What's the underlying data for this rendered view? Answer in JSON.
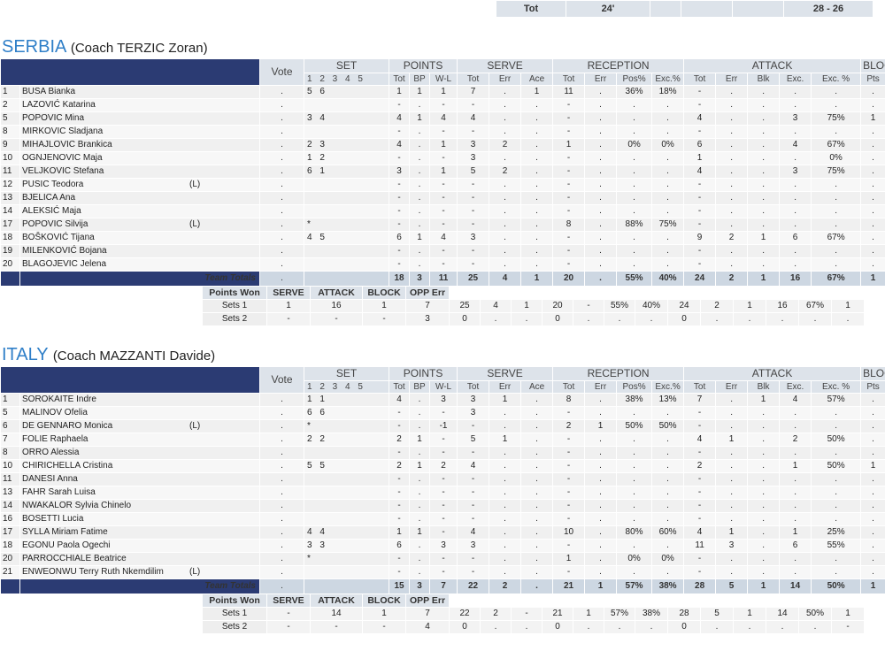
{
  "top_total": {
    "label": "Tot",
    "duration": "24'",
    "score": "28 - 26"
  },
  "headers": {
    "vote": "Vote",
    "groups": {
      "set": "SET",
      "points": "POINTS",
      "serve": "SERVE",
      "reception": "RECEPTION",
      "attack": "ATTACK",
      "block": "BLOCK"
    },
    "set_nums": "1 2 3 4 5",
    "points_cols": [
      "Tot",
      "BP",
      "W-L"
    ],
    "serve_cols": [
      "Tot",
      "Err",
      "Ace"
    ],
    "reception_cols": [
      "Tot",
      "Err",
      "Pos%",
      "Exc.%"
    ],
    "attack_cols": [
      "Tot",
      "Err",
      "Blk",
      "Exc.",
      "Exc. %"
    ],
    "block_cols": [
      "Pts"
    ],
    "team_totals": "Team Totals"
  },
  "points_won_headers": [
    "Points Won",
    "SERVE",
    "ATTACK",
    "BLOCK",
    "OPP Err"
  ],
  "teams": [
    {
      "name": "SERBIA",
      "coach": "(Coach TERZIC Zoran)",
      "players": [
        {
          "num": "1",
          "name": "BUSA Bianka",
          "lib": "",
          "vote": ".",
          "sets": "5 6",
          "p_tot": "1",
          "p_bp": "1",
          "p_wl": "1",
          "s_tot": "7",
          "s_err": ".",
          "s_ace": "1",
          "r_tot": "11",
          "r_err": ".",
          "r_pos": "36%",
          "r_exc": "18%",
          "a_tot": "-",
          "a_err": ".",
          "a_blk": ".",
          "a_exc": ".",
          "a_excp": ".",
          "b_pts": "."
        },
        {
          "num": "2",
          "name": "LAZOVIĆ Katarina",
          "lib": "",
          "vote": ".",
          "sets": "",
          "p_tot": "-",
          "p_bp": ".",
          "p_wl": "-",
          "s_tot": "-",
          "s_err": ".",
          "s_ace": ".",
          "r_tot": "-",
          "r_err": ".",
          "r_pos": ".",
          "r_exc": ".",
          "a_tot": "-",
          "a_err": ".",
          "a_blk": ".",
          "a_exc": ".",
          "a_excp": ".",
          "b_pts": "."
        },
        {
          "num": "5",
          "name": "POPOVIC Mina",
          "lib": "",
          "vote": ".",
          "sets": "3 4",
          "p_tot": "4",
          "p_bp": "1",
          "p_wl": "4",
          "s_tot": "4",
          "s_err": ".",
          "s_ace": ".",
          "r_tot": "-",
          "r_err": ".",
          "r_pos": ".",
          "r_exc": ".",
          "a_tot": "4",
          "a_err": ".",
          "a_blk": ".",
          "a_exc": "3",
          "a_excp": "75%",
          "b_pts": "1"
        },
        {
          "num": "8",
          "name": "MIRKOVIC Sladjana",
          "lib": "",
          "vote": ".",
          "sets": "",
          "p_tot": "-",
          "p_bp": ".",
          "p_wl": "-",
          "s_tot": "-",
          "s_err": ".",
          "s_ace": ".",
          "r_tot": "-",
          "r_err": ".",
          "r_pos": ".",
          "r_exc": ".",
          "a_tot": "-",
          "a_err": ".",
          "a_blk": ".",
          "a_exc": ".",
          "a_excp": ".",
          "b_pts": "."
        },
        {
          "num": "9",
          "name": "MIHAJLOVIC Brankica",
          "lib": "",
          "vote": ".",
          "sets": "2 3",
          "p_tot": "4",
          "p_bp": ".",
          "p_wl": "1",
          "s_tot": "3",
          "s_err": "2",
          "s_ace": ".",
          "r_tot": "1",
          "r_err": ".",
          "r_pos": "0%",
          "r_exc": "0%",
          "a_tot": "6",
          "a_err": ".",
          "a_blk": ".",
          "a_exc": "4",
          "a_excp": "67%",
          "b_pts": "."
        },
        {
          "num": "10",
          "name": "OGNJENOVIC Maja",
          "lib": "",
          "vote": ".",
          "sets": "1 2",
          "p_tot": "-",
          "p_bp": ".",
          "p_wl": "-",
          "s_tot": "3",
          "s_err": ".",
          "s_ace": ".",
          "r_tot": "-",
          "r_err": ".",
          "r_pos": ".",
          "r_exc": ".",
          "a_tot": "1",
          "a_err": ".",
          "a_blk": ".",
          "a_exc": ".",
          "a_excp": "0%",
          "b_pts": "."
        },
        {
          "num": "11",
          "name": "VELJKOVIC Stefana",
          "lib": "",
          "vote": ".",
          "sets": "6 1",
          "p_tot": "3",
          "p_bp": ".",
          "p_wl": "1",
          "s_tot": "5",
          "s_err": "2",
          "s_ace": ".",
          "r_tot": "-",
          "r_err": ".",
          "r_pos": ".",
          "r_exc": ".",
          "a_tot": "4",
          "a_err": ".",
          "a_blk": ".",
          "a_exc": "3",
          "a_excp": "75%",
          "b_pts": "."
        },
        {
          "num": "12",
          "name": "PUSIC Teodora",
          "lib": "(L)",
          "vote": ".",
          "sets": "",
          "p_tot": "-",
          "p_bp": ".",
          "p_wl": "-",
          "s_tot": "-",
          "s_err": ".",
          "s_ace": ".",
          "r_tot": "-",
          "r_err": ".",
          "r_pos": ".",
          "r_exc": ".",
          "a_tot": "-",
          "a_err": ".",
          "a_blk": ".",
          "a_exc": ".",
          "a_excp": ".",
          "b_pts": "."
        },
        {
          "num": "13",
          "name": "BJELICA Ana",
          "lib": "",
          "vote": ".",
          "sets": "",
          "p_tot": "-",
          "p_bp": ".",
          "p_wl": "-",
          "s_tot": "-",
          "s_err": ".",
          "s_ace": ".",
          "r_tot": "-",
          "r_err": ".",
          "r_pos": ".",
          "r_exc": ".",
          "a_tot": "-",
          "a_err": ".",
          "a_blk": ".",
          "a_exc": ".",
          "a_excp": ".",
          "b_pts": "."
        },
        {
          "num": "14",
          "name": "ALEKSIĆ Maja",
          "lib": "",
          "vote": ".",
          "sets": "",
          "p_tot": "-",
          "p_bp": ".",
          "p_wl": "-",
          "s_tot": "-",
          "s_err": ".",
          "s_ace": ".",
          "r_tot": "-",
          "r_err": ".",
          "r_pos": ".",
          "r_exc": ".",
          "a_tot": "-",
          "a_err": ".",
          "a_blk": ".",
          "a_exc": ".",
          "a_excp": ".",
          "b_pts": "."
        },
        {
          "num": "17",
          "name": "POPOVIC Silvija",
          "lib": "(L)",
          "vote": ".",
          "sets": "*",
          "p_tot": "-",
          "p_bp": ".",
          "p_wl": "-",
          "s_tot": "-",
          "s_err": ".",
          "s_ace": ".",
          "r_tot": "8",
          "r_err": ".",
          "r_pos": "88%",
          "r_exc": "75%",
          "a_tot": "-",
          "a_err": ".",
          "a_blk": ".",
          "a_exc": ".",
          "a_excp": ".",
          "b_pts": "."
        },
        {
          "num": "18",
          "name": "BOŠKOVIĆ Tijana",
          "lib": "",
          "vote": ".",
          "sets": "4 5",
          "p_tot": "6",
          "p_bp": "1",
          "p_wl": "4",
          "s_tot": "3",
          "s_err": ".",
          "s_ace": ".",
          "r_tot": "-",
          "r_err": ".",
          "r_pos": ".",
          "r_exc": ".",
          "a_tot": "9",
          "a_err": "2",
          "a_blk": "1",
          "a_exc": "6",
          "a_excp": "67%",
          "b_pts": "."
        },
        {
          "num": "19",
          "name": "MILENKOVIĆ Bojana",
          "lib": "",
          "vote": ".",
          "sets": "",
          "p_tot": "-",
          "p_bp": ".",
          "p_wl": "-",
          "s_tot": "-",
          "s_err": ".",
          "s_ace": ".",
          "r_tot": "-",
          "r_err": ".",
          "r_pos": ".",
          "r_exc": ".",
          "a_tot": "-",
          "a_err": ".",
          "a_blk": ".",
          "a_exc": ".",
          "a_excp": ".",
          "b_pts": "."
        },
        {
          "num": "20",
          "name": "BLAGOJEVIC Jelena",
          "lib": "",
          "vote": ".",
          "sets": "",
          "p_tot": "-",
          "p_bp": ".",
          "p_wl": "-",
          "s_tot": "-",
          "s_err": ".",
          "s_ace": ".",
          "r_tot": "-",
          "r_err": ".",
          "r_pos": ".",
          "r_exc": ".",
          "a_tot": "-",
          "a_err": ".",
          "a_blk": ".",
          "a_exc": ".",
          "a_excp": ".",
          "b_pts": "."
        }
      ],
      "totals": {
        "vote": ".",
        "p_tot": "18",
        "p_bp": "3",
        "p_wl": "11",
        "s_tot": "25",
        "s_err": "4",
        "s_ace": "1",
        "r_tot": "20",
        "r_err": ".",
        "r_pos": "55%",
        "r_exc": "40%",
        "a_tot": "24",
        "a_err": "2",
        "a_blk": "1",
        "a_exc": "16",
        "a_excp": "67%",
        "b_pts": "1"
      },
      "points_won": [
        {
          "label": "Sets 1",
          "serve": "1",
          "attack": "16",
          "block": "1",
          "opp": "7",
          "c": [
            "25",
            "4",
            "1",
            "20",
            "-",
            "55%",
            "40%",
            "24",
            "2",
            "1",
            "16",
            "67%",
            "1"
          ]
        },
        {
          "label": "Sets 2",
          "serve": "-",
          "attack": "-",
          "block": "-",
          "opp": "3",
          "c": [
            "0",
            ".",
            ".",
            "0",
            ".",
            ".",
            ".",
            "0",
            ".",
            ".",
            ".",
            ".",
            "."
          ]
        }
      ]
    },
    {
      "name": "ITALY",
      "coach": "(Coach MAZZANTI Davide)",
      "players": [
        {
          "num": "1",
          "name": "SOROKAITE Indre",
          "lib": "",
          "vote": ".",
          "sets": "1 1",
          "p_tot": "4",
          "p_bp": ".",
          "p_wl": "3",
          "s_tot": "3",
          "s_err": "1",
          "s_ace": ".",
          "r_tot": "8",
          "r_err": ".",
          "r_pos": "38%",
          "r_exc": "13%",
          "a_tot": "7",
          "a_err": ".",
          "a_blk": "1",
          "a_exc": "4",
          "a_excp": "57%",
          "b_pts": "."
        },
        {
          "num": "5",
          "name": "MALINOV Ofelia",
          "lib": "",
          "vote": ".",
          "sets": "6 6",
          "p_tot": "-",
          "p_bp": ".",
          "p_wl": "-",
          "s_tot": "3",
          "s_err": ".",
          "s_ace": ".",
          "r_tot": "-",
          "r_err": ".",
          "r_pos": ".",
          "r_exc": ".",
          "a_tot": "-",
          "a_err": ".",
          "a_blk": ".",
          "a_exc": ".",
          "a_excp": ".",
          "b_pts": "."
        },
        {
          "num": "6",
          "name": "DE GENNARO Monica",
          "lib": "(L)",
          "vote": ".",
          "sets": "*",
          "p_tot": "-",
          "p_bp": ".",
          "p_wl": "-1",
          "s_tot": "-",
          "s_err": ".",
          "s_ace": ".",
          "r_tot": "2",
          "r_err": "1",
          "r_pos": "50%",
          "r_exc": "50%",
          "a_tot": "-",
          "a_err": ".",
          "a_blk": ".",
          "a_exc": ".",
          "a_excp": ".",
          "b_pts": "."
        },
        {
          "num": "7",
          "name": "FOLIE Raphaela",
          "lib": "",
          "vote": ".",
          "sets": "2 2",
          "p_tot": "2",
          "p_bp": "1",
          "p_wl": "-",
          "s_tot": "5",
          "s_err": "1",
          "s_ace": ".",
          "r_tot": "-",
          "r_err": ".",
          "r_pos": ".",
          "r_exc": ".",
          "a_tot": "4",
          "a_err": "1",
          "a_blk": ".",
          "a_exc": "2",
          "a_excp": "50%",
          "b_pts": "."
        },
        {
          "num": "8",
          "name": "ORRO Alessia",
          "lib": "",
          "vote": ".",
          "sets": "",
          "p_tot": "-",
          "p_bp": ".",
          "p_wl": "-",
          "s_tot": "-",
          "s_err": ".",
          "s_ace": ".",
          "r_tot": "-",
          "r_err": ".",
          "r_pos": ".",
          "r_exc": ".",
          "a_tot": "-",
          "a_err": ".",
          "a_blk": ".",
          "a_exc": ".",
          "a_excp": ".",
          "b_pts": "."
        },
        {
          "num": "10",
          "name": "CHIRICHELLA Cristina",
          "lib": "",
          "vote": ".",
          "sets": "5 5",
          "p_tot": "2",
          "p_bp": "1",
          "p_wl": "2",
          "s_tot": "4",
          "s_err": ".",
          "s_ace": ".",
          "r_tot": "-",
          "r_err": ".",
          "r_pos": ".",
          "r_exc": ".",
          "a_tot": "2",
          "a_err": ".",
          "a_blk": ".",
          "a_exc": "1",
          "a_excp": "50%",
          "b_pts": "1"
        },
        {
          "num": "11",
          "name": "DANESI Anna",
          "lib": "",
          "vote": ".",
          "sets": "",
          "p_tot": "-",
          "p_bp": ".",
          "p_wl": "-",
          "s_tot": "-",
          "s_err": ".",
          "s_ace": ".",
          "r_tot": "-",
          "r_err": ".",
          "r_pos": ".",
          "r_exc": ".",
          "a_tot": "-",
          "a_err": ".",
          "a_blk": ".",
          "a_exc": ".",
          "a_excp": ".",
          "b_pts": "."
        },
        {
          "num": "13",
          "name": "FAHR Sarah Luisa",
          "lib": "",
          "vote": ".",
          "sets": "",
          "p_tot": "-",
          "p_bp": ".",
          "p_wl": "-",
          "s_tot": "-",
          "s_err": ".",
          "s_ace": ".",
          "r_tot": "-",
          "r_err": ".",
          "r_pos": ".",
          "r_exc": ".",
          "a_tot": "-",
          "a_err": ".",
          "a_blk": ".",
          "a_exc": ".",
          "a_excp": ".",
          "b_pts": "."
        },
        {
          "num": "14",
          "name": "NWAKALOR Sylvia Chinelo",
          "lib": "",
          "vote": ".",
          "sets": "",
          "p_tot": "-",
          "p_bp": ".",
          "p_wl": "-",
          "s_tot": "-",
          "s_err": ".",
          "s_ace": ".",
          "r_tot": "-",
          "r_err": ".",
          "r_pos": ".",
          "r_exc": ".",
          "a_tot": "-",
          "a_err": ".",
          "a_blk": ".",
          "a_exc": ".",
          "a_excp": ".",
          "b_pts": "."
        },
        {
          "num": "16",
          "name": "BOSETTI Lucia",
          "lib": "",
          "vote": ".",
          "sets": "",
          "p_tot": "-",
          "p_bp": ".",
          "p_wl": "-",
          "s_tot": "-",
          "s_err": ".",
          "s_ace": ".",
          "r_tot": "-",
          "r_err": ".",
          "r_pos": ".",
          "r_exc": ".",
          "a_tot": "-",
          "a_err": ".",
          "a_blk": ".",
          "a_exc": ".",
          "a_excp": ".",
          "b_pts": "."
        },
        {
          "num": "17",
          "name": "SYLLA Miriam Fatime",
          "lib": "",
          "vote": ".",
          "sets": "4 4",
          "p_tot": "1",
          "p_bp": "1",
          "p_wl": "-",
          "s_tot": "4",
          "s_err": ".",
          "s_ace": ".",
          "r_tot": "10",
          "r_err": ".",
          "r_pos": "80%",
          "r_exc": "60%",
          "a_tot": "4",
          "a_err": "1",
          "a_blk": ".",
          "a_exc": "1",
          "a_excp": "25%",
          "b_pts": "."
        },
        {
          "num": "18",
          "name": "EGONU Paola Ogechi",
          "lib": "",
          "vote": ".",
          "sets": "3 3",
          "p_tot": "6",
          "p_bp": ".",
          "p_wl": "3",
          "s_tot": "3",
          "s_err": ".",
          "s_ace": ".",
          "r_tot": "-",
          "r_err": ".",
          "r_pos": ".",
          "r_exc": ".",
          "a_tot": "11",
          "a_err": "3",
          "a_blk": ".",
          "a_exc": "6",
          "a_excp": "55%",
          "b_pts": "."
        },
        {
          "num": "20",
          "name": "PARROCCHIALE Beatrice",
          "lib": "",
          "vote": ".",
          "sets": "*",
          "p_tot": "-",
          "p_bp": ".",
          "p_wl": "-",
          "s_tot": "-",
          "s_err": ".",
          "s_ace": ".",
          "r_tot": "1",
          "r_err": ".",
          "r_pos": "0%",
          "r_exc": "0%",
          "a_tot": "-",
          "a_err": ".",
          "a_blk": ".",
          "a_exc": ".",
          "a_excp": ".",
          "b_pts": "."
        },
        {
          "num": "21",
          "name": "ENWEONWU Terry Ruth Nkemdilim",
          "lib": "(L)",
          "vote": ".",
          "sets": "",
          "p_tot": "-",
          "p_bp": ".",
          "p_wl": "-",
          "s_tot": "-",
          "s_err": ".",
          "s_ace": ".",
          "r_tot": "-",
          "r_err": ".",
          "r_pos": ".",
          "r_exc": ".",
          "a_tot": "-",
          "a_err": ".",
          "a_blk": ".",
          "a_exc": ".",
          "a_excp": ".",
          "b_pts": "."
        }
      ],
      "totals": {
        "vote": ".",
        "p_tot": "15",
        "p_bp": "3",
        "p_wl": "7",
        "s_tot": "22",
        "s_err": "2",
        "s_ace": ".",
        "r_tot": "21",
        "r_err": "1",
        "r_pos": "57%",
        "r_exc": "38%",
        "a_tot": "28",
        "a_err": "5",
        "a_blk": "1",
        "a_exc": "14",
        "a_excp": "50%",
        "b_pts": "1"
      },
      "points_won": [
        {
          "label": "Sets 1",
          "serve": "-",
          "attack": "14",
          "block": "1",
          "opp": "7",
          "c": [
            "22",
            "2",
            "-",
            "21",
            "1",
            "57%",
            "38%",
            "28",
            "5",
            "1",
            "14",
            "50%",
            "1"
          ]
        },
        {
          "label": "Sets 2",
          "serve": "-",
          "attack": "-",
          "block": "-",
          "opp": "4",
          "c": [
            "0",
            ".",
            ".",
            "0",
            ".",
            ".",
            ".",
            "0",
            ".",
            ".",
            ".",
            ".",
            "-"
          ]
        }
      ]
    }
  ]
}
